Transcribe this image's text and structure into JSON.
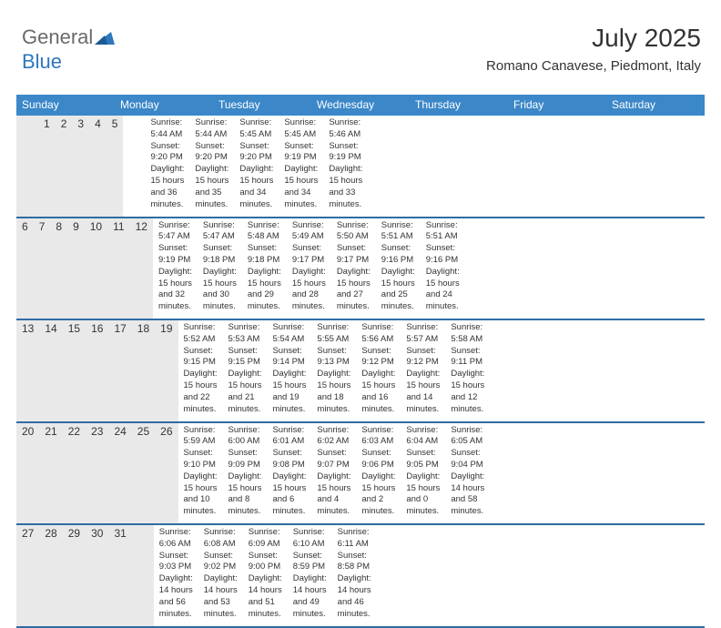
{
  "logo": {
    "word1": "General",
    "word2": "Blue"
  },
  "title": "July 2025",
  "subtitle": "Romano Canavese, Piedmont, Italy",
  "colors": {
    "header_bg": "#3b87c8",
    "header_text": "#ffffff",
    "daynum_bg": "#e9e9e9",
    "week_divider": "#2f6ca3",
    "body_text": "#333333",
    "logo_gray": "#6a6a6a",
    "logo_blue": "#2e77bd"
  },
  "days_of_week": [
    "Sunday",
    "Monday",
    "Tuesday",
    "Wednesday",
    "Thursday",
    "Friday",
    "Saturday"
  ],
  "weeks": [
    [
      {
        "n": "",
        "sr": "",
        "ss": "",
        "dl1": "",
        "dl2": ""
      },
      {
        "n": "",
        "sr": "",
        "ss": "",
        "dl1": "",
        "dl2": ""
      },
      {
        "n": "1",
        "sr": "Sunrise: 5:44 AM",
        "ss": "Sunset: 9:20 PM",
        "dl1": "Daylight: 15 hours",
        "dl2": "and 36 minutes."
      },
      {
        "n": "2",
        "sr": "Sunrise: 5:44 AM",
        "ss": "Sunset: 9:20 PM",
        "dl1": "Daylight: 15 hours",
        "dl2": "and 35 minutes."
      },
      {
        "n": "3",
        "sr": "Sunrise: 5:45 AM",
        "ss": "Sunset: 9:20 PM",
        "dl1": "Daylight: 15 hours",
        "dl2": "and 34 minutes."
      },
      {
        "n": "4",
        "sr": "Sunrise: 5:45 AM",
        "ss": "Sunset: 9:19 PM",
        "dl1": "Daylight: 15 hours",
        "dl2": "and 34 minutes."
      },
      {
        "n": "5",
        "sr": "Sunrise: 5:46 AM",
        "ss": "Sunset: 9:19 PM",
        "dl1": "Daylight: 15 hours",
        "dl2": "and 33 minutes."
      }
    ],
    [
      {
        "n": "6",
        "sr": "Sunrise: 5:47 AM",
        "ss": "Sunset: 9:19 PM",
        "dl1": "Daylight: 15 hours",
        "dl2": "and 32 minutes."
      },
      {
        "n": "7",
        "sr": "Sunrise: 5:47 AM",
        "ss": "Sunset: 9:18 PM",
        "dl1": "Daylight: 15 hours",
        "dl2": "and 30 minutes."
      },
      {
        "n": "8",
        "sr": "Sunrise: 5:48 AM",
        "ss": "Sunset: 9:18 PM",
        "dl1": "Daylight: 15 hours",
        "dl2": "and 29 minutes."
      },
      {
        "n": "9",
        "sr": "Sunrise: 5:49 AM",
        "ss": "Sunset: 9:17 PM",
        "dl1": "Daylight: 15 hours",
        "dl2": "and 28 minutes."
      },
      {
        "n": "10",
        "sr": "Sunrise: 5:50 AM",
        "ss": "Sunset: 9:17 PM",
        "dl1": "Daylight: 15 hours",
        "dl2": "and 27 minutes."
      },
      {
        "n": "11",
        "sr": "Sunrise: 5:51 AM",
        "ss": "Sunset: 9:16 PM",
        "dl1": "Daylight: 15 hours",
        "dl2": "and 25 minutes."
      },
      {
        "n": "12",
        "sr": "Sunrise: 5:51 AM",
        "ss": "Sunset: 9:16 PM",
        "dl1": "Daylight: 15 hours",
        "dl2": "and 24 minutes."
      }
    ],
    [
      {
        "n": "13",
        "sr": "Sunrise: 5:52 AM",
        "ss": "Sunset: 9:15 PM",
        "dl1": "Daylight: 15 hours",
        "dl2": "and 22 minutes."
      },
      {
        "n": "14",
        "sr": "Sunrise: 5:53 AM",
        "ss": "Sunset: 9:15 PM",
        "dl1": "Daylight: 15 hours",
        "dl2": "and 21 minutes."
      },
      {
        "n": "15",
        "sr": "Sunrise: 5:54 AM",
        "ss": "Sunset: 9:14 PM",
        "dl1": "Daylight: 15 hours",
        "dl2": "and 19 minutes."
      },
      {
        "n": "16",
        "sr": "Sunrise: 5:55 AM",
        "ss": "Sunset: 9:13 PM",
        "dl1": "Daylight: 15 hours",
        "dl2": "and 18 minutes."
      },
      {
        "n": "17",
        "sr": "Sunrise: 5:56 AM",
        "ss": "Sunset: 9:12 PM",
        "dl1": "Daylight: 15 hours",
        "dl2": "and 16 minutes."
      },
      {
        "n": "18",
        "sr": "Sunrise: 5:57 AM",
        "ss": "Sunset: 9:12 PM",
        "dl1": "Daylight: 15 hours",
        "dl2": "and 14 minutes."
      },
      {
        "n": "19",
        "sr": "Sunrise: 5:58 AM",
        "ss": "Sunset: 9:11 PM",
        "dl1": "Daylight: 15 hours",
        "dl2": "and 12 minutes."
      }
    ],
    [
      {
        "n": "20",
        "sr": "Sunrise: 5:59 AM",
        "ss": "Sunset: 9:10 PM",
        "dl1": "Daylight: 15 hours",
        "dl2": "and 10 minutes."
      },
      {
        "n": "21",
        "sr": "Sunrise: 6:00 AM",
        "ss": "Sunset: 9:09 PM",
        "dl1": "Daylight: 15 hours",
        "dl2": "and 8 minutes."
      },
      {
        "n": "22",
        "sr": "Sunrise: 6:01 AM",
        "ss": "Sunset: 9:08 PM",
        "dl1": "Daylight: 15 hours",
        "dl2": "and 6 minutes."
      },
      {
        "n": "23",
        "sr": "Sunrise: 6:02 AM",
        "ss": "Sunset: 9:07 PM",
        "dl1": "Daylight: 15 hours",
        "dl2": "and 4 minutes."
      },
      {
        "n": "24",
        "sr": "Sunrise: 6:03 AM",
        "ss": "Sunset: 9:06 PM",
        "dl1": "Daylight: 15 hours",
        "dl2": "and 2 minutes."
      },
      {
        "n": "25",
        "sr": "Sunrise: 6:04 AM",
        "ss": "Sunset: 9:05 PM",
        "dl1": "Daylight: 15 hours",
        "dl2": "and 0 minutes."
      },
      {
        "n": "26",
        "sr": "Sunrise: 6:05 AM",
        "ss": "Sunset: 9:04 PM",
        "dl1": "Daylight: 14 hours",
        "dl2": "and 58 minutes."
      }
    ],
    [
      {
        "n": "27",
        "sr": "Sunrise: 6:06 AM",
        "ss": "Sunset: 9:03 PM",
        "dl1": "Daylight: 14 hours",
        "dl2": "and 56 minutes."
      },
      {
        "n": "28",
        "sr": "Sunrise: 6:08 AM",
        "ss": "Sunset: 9:02 PM",
        "dl1": "Daylight: 14 hours",
        "dl2": "and 53 minutes."
      },
      {
        "n": "29",
        "sr": "Sunrise: 6:09 AM",
        "ss": "Sunset: 9:00 PM",
        "dl1": "Daylight: 14 hours",
        "dl2": "and 51 minutes."
      },
      {
        "n": "30",
        "sr": "Sunrise: 6:10 AM",
        "ss": "Sunset: 8:59 PM",
        "dl1": "Daylight: 14 hours",
        "dl2": "and 49 minutes."
      },
      {
        "n": "31",
        "sr": "Sunrise: 6:11 AM",
        "ss": "Sunset: 8:58 PM",
        "dl1": "Daylight: 14 hours",
        "dl2": "and 46 minutes."
      },
      {
        "n": "",
        "sr": "",
        "ss": "",
        "dl1": "",
        "dl2": ""
      },
      {
        "n": "",
        "sr": "",
        "ss": "",
        "dl1": "",
        "dl2": ""
      }
    ]
  ]
}
